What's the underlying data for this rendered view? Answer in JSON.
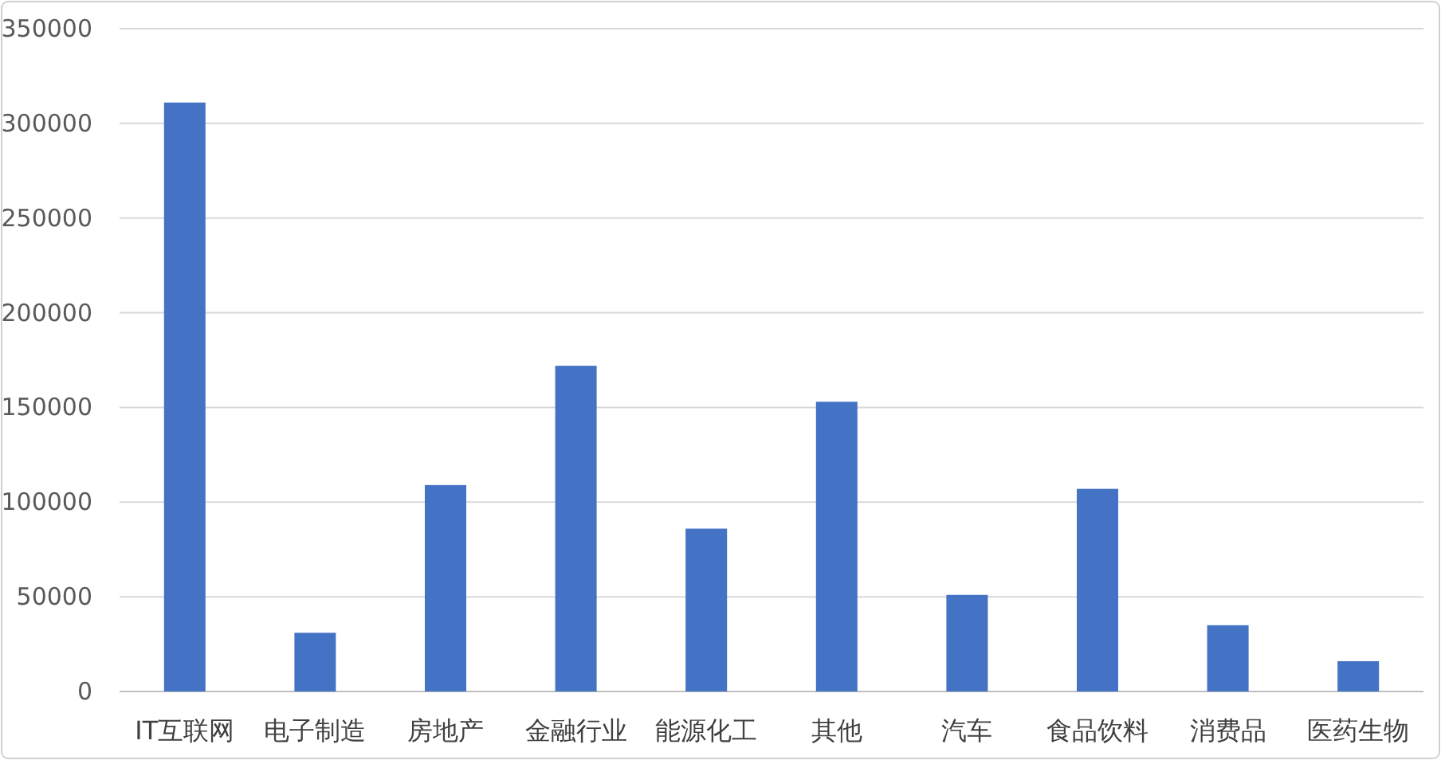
{
  "chart_data": {
    "type": "bar",
    "categories": [
      "IT互联网",
      "电子制造",
      "房地产",
      "金融行业",
      "能源化工",
      "其他",
      "汽车",
      "食品饮料",
      "消费品",
      "医药生物"
    ],
    "values": [
      311000,
      31000,
      109000,
      172000,
      86000,
      153000,
      51000,
      107000,
      35000,
      16000
    ],
    "color": "#4472c4",
    "ylim": [
      0,
      350000
    ],
    "yticks": [
      0,
      50000,
      100000,
      150000,
      200000,
      250000,
      300000,
      350000
    ],
    "grid": "y"
  }
}
